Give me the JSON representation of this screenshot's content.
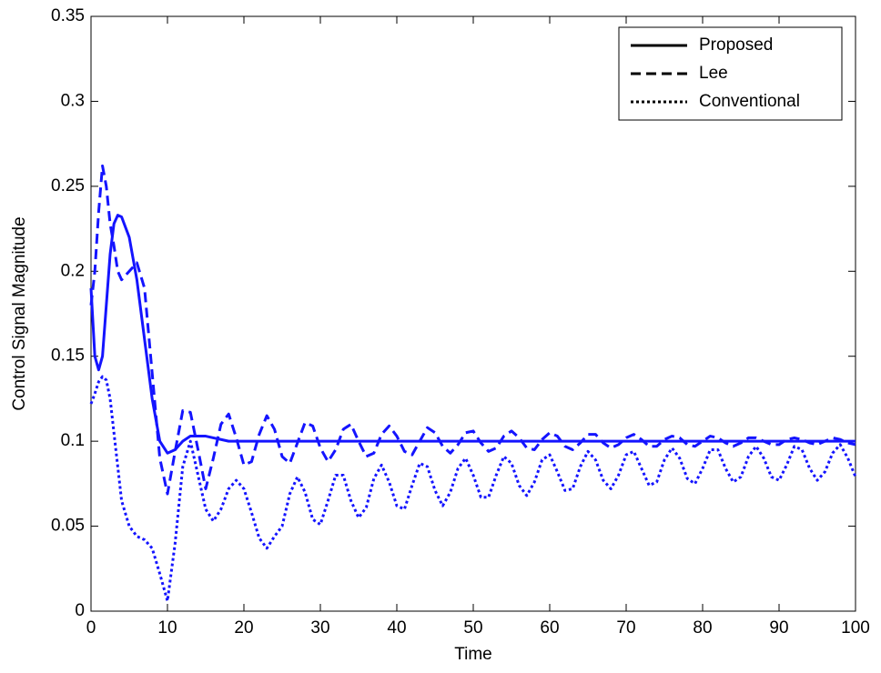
{
  "chart_data": {
    "type": "line",
    "xlabel": "Time",
    "ylabel": "Control Signal Magnitude",
    "x": [
      0,
      0.5,
      1,
      1.5,
      2,
      2.5,
      3,
      3.5,
      4,
      5,
      6,
      7,
      8,
      9,
      10,
      11,
      12,
      13,
      14,
      15,
      16,
      17,
      18,
      19,
      20,
      21,
      22,
      23,
      24,
      25,
      26,
      27,
      28,
      29,
      30,
      31,
      32,
      33,
      34,
      35,
      36,
      37,
      38,
      39,
      40,
      41,
      42,
      43,
      44,
      45,
      46,
      47,
      48,
      49,
      50,
      51,
      52,
      53,
      54,
      55,
      56,
      57,
      58,
      59,
      60,
      61,
      62,
      63,
      64,
      65,
      66,
      67,
      68,
      69,
      70,
      71,
      72,
      73,
      74,
      75,
      76,
      77,
      78,
      79,
      80,
      81,
      82,
      83,
      84,
      85,
      86,
      87,
      88,
      89,
      90,
      91,
      92,
      93,
      94,
      95,
      96,
      97,
      98,
      99,
      100
    ],
    "series": [
      {
        "name": "Proposed",
        "color": "#1414ff",
        "line_style": "solid",
        "values": [
          0.19,
          0.15,
          0.142,
          0.15,
          0.18,
          0.21,
          0.228,
          0.233,
          0.232,
          0.22,
          0.195,
          0.16,
          0.125,
          0.1,
          0.093,
          0.095,
          0.1,
          0.103,
          0.103,
          0.103,
          0.102,
          0.101,
          0.1,
          0.1,
          0.1,
          0.1,
          0.1,
          0.1,
          0.1,
          0.1,
          0.1,
          0.1,
          0.1,
          0.1,
          0.1,
          0.1,
          0.1,
          0.1,
          0.1,
          0.1,
          0.1,
          0.1,
          0.1,
          0.1,
          0.1,
          0.1,
          0.1,
          0.1,
          0.1,
          0.1,
          0.1,
          0.1,
          0.1,
          0.1,
          0.1,
          0.1,
          0.1,
          0.1,
          0.1,
          0.1,
          0.1,
          0.1,
          0.1,
          0.1,
          0.1,
          0.1,
          0.1,
          0.1,
          0.1,
          0.1,
          0.1,
          0.1,
          0.1,
          0.1,
          0.1,
          0.1,
          0.1,
          0.1,
          0.1,
          0.1,
          0.1,
          0.1,
          0.1,
          0.1,
          0.1,
          0.1,
          0.1,
          0.1,
          0.1,
          0.1,
          0.1,
          0.1,
          0.1,
          0.1,
          0.1,
          0.1,
          0.1,
          0.1,
          0.1,
          0.1,
          0.1,
          0.1,
          0.1,
          0.1,
          0.1
        ]
      },
      {
        "name": "Lee",
        "color": "#1414ff",
        "line_style": "dashed",
        "values": [
          0.18,
          0.2,
          0.235,
          0.262,
          0.25,
          0.228,
          0.215,
          0.2,
          0.195,
          0.2,
          0.205,
          0.19,
          0.14,
          0.09,
          0.069,
          0.094,
          0.118,
          0.117,
          0.095,
          0.072,
          0.09,
          0.11,
          0.116,
          0.102,
          0.086,
          0.088,
          0.104,
          0.115,
          0.107,
          0.091,
          0.087,
          0.099,
          0.111,
          0.109,
          0.096,
          0.088,
          0.095,
          0.107,
          0.11,
          0.1,
          0.091,
          0.093,
          0.104,
          0.109,
          0.103,
          0.094,
          0.092,
          0.1,
          0.108,
          0.105,
          0.097,
          0.093,
          0.098,
          0.105,
          0.106,
          0.099,
          0.094,
          0.096,
          0.103,
          0.106,
          0.102,
          0.096,
          0.095,
          0.101,
          0.105,
          0.103,
          0.097,
          0.095,
          0.099,
          0.104,
          0.104,
          0.099,
          0.096,
          0.098,
          0.102,
          0.104,
          0.101,
          0.097,
          0.097,
          0.101,
          0.103,
          0.102,
          0.098,
          0.097,
          0.1,
          0.103,
          0.102,
          0.099,
          0.097,
          0.099,
          0.102,
          0.102,
          0.1,
          0.098,
          0.098,
          0.101,
          0.102,
          0.101,
          0.099,
          0.098,
          0.1,
          0.102,
          0.101,
          0.099,
          0.098
        ]
      },
      {
        "name": "Conventional",
        "color": "#1414ff",
        "line_style": "dotted",
        "values": [
          0.122,
          0.128,
          0.135,
          0.138,
          0.136,
          0.125,
          0.105,
          0.085,
          0.065,
          0.05,
          0.044,
          0.042,
          0.037,
          0.022,
          0.006,
          0.04,
          0.085,
          0.1,
          0.08,
          0.06,
          0.053,
          0.06,
          0.072,
          0.077,
          0.072,
          0.058,
          0.043,
          0.037,
          0.044,
          0.05,
          0.069,
          0.079,
          0.07,
          0.054,
          0.051,
          0.065,
          0.08,
          0.08,
          0.065,
          0.055,
          0.061,
          0.078,
          0.086,
          0.076,
          0.062,
          0.06,
          0.074,
          0.087,
          0.085,
          0.071,
          0.062,
          0.07,
          0.084,
          0.09,
          0.08,
          0.067,
          0.067,
          0.08,
          0.091,
          0.087,
          0.074,
          0.068,
          0.076,
          0.089,
          0.092,
          0.082,
          0.071,
          0.072,
          0.085,
          0.094,
          0.089,
          0.077,
          0.072,
          0.08,
          0.092,
          0.094,
          0.084,
          0.074,
          0.076,
          0.089,
          0.096,
          0.09,
          0.078,
          0.075,
          0.084,
          0.095,
          0.095,
          0.084,
          0.076,
          0.079,
          0.091,
          0.097,
          0.09,
          0.079,
          0.077,
          0.086,
          0.097,
          0.095,
          0.084,
          0.077,
          0.082,
          0.093,
          0.098,
          0.09,
          0.079
        ]
      }
    ],
    "xlim": [
      0,
      100
    ],
    "xticks": [
      0,
      10,
      20,
      30,
      40,
      50,
      60,
      70,
      80,
      90,
      100
    ],
    "ylim": [
      0,
      0.35
    ],
    "yticks": [
      0,
      0.05,
      0.1,
      0.15,
      0.2,
      0.25,
      0.3,
      0.35
    ],
    "grid": false,
    "legend": "upper right"
  }
}
